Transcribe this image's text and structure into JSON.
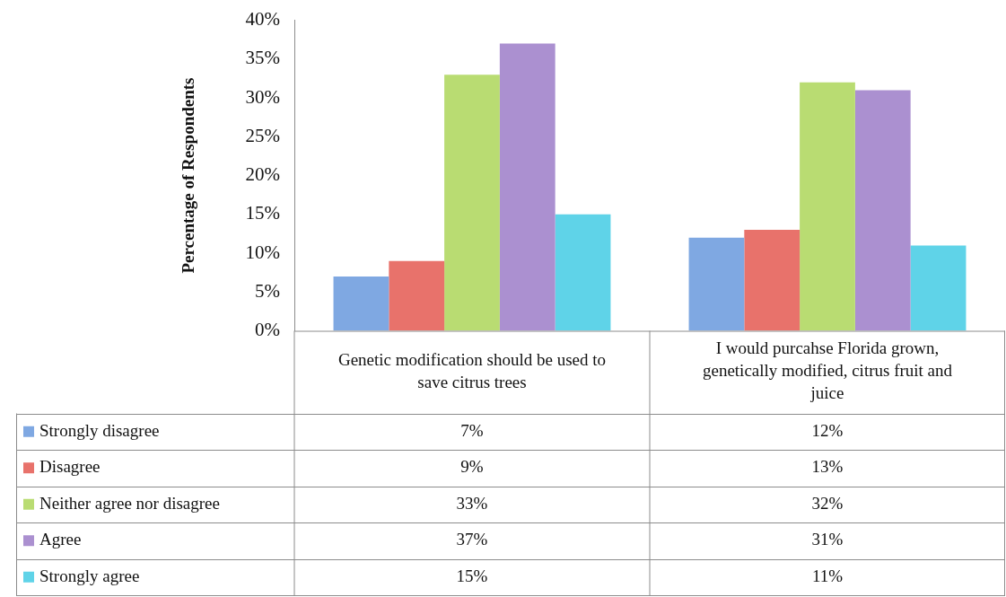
{
  "chart_data": {
    "type": "bar",
    "ylabel": "Percentage of Respondents",
    "categories": [
      "Genetic modification should be used to save citrus trees",
      "I would purcahse Florida grown, genetically modified, citrus fruit and juice"
    ],
    "series": [
      {
        "name": "Strongly disagree",
        "color": "#7fa8e2",
        "values": [
          7,
          12
        ],
        "value_labels": [
          "7%",
          "12%"
        ]
      },
      {
        "name": "Disagree",
        "color": "#e8726b",
        "values": [
          9,
          13
        ],
        "value_labels": [
          "9%",
          "13%"
        ]
      },
      {
        "name": "Neither agree nor disagree",
        "color": "#b9dc72",
        "values": [
          33,
          32
        ],
        "value_labels": [
          "33%",
          "32%"
        ]
      },
      {
        "name": "Agree",
        "color": "#ab90d0",
        "values": [
          37,
          31
        ],
        "value_labels": [
          "37%",
          "31%"
        ]
      },
      {
        "name": "Strongly agree",
        "color": "#5fd3e8",
        "values": [
          15,
          11
        ],
        "value_labels": [
          "15%",
          "11%"
        ]
      }
    ],
    "ylim": [
      0,
      40
    ],
    "yticks": [
      {
        "value": 0,
        "label": "0%"
      },
      {
        "value": 5,
        "label": "5%"
      },
      {
        "value": 10,
        "label": "10%"
      },
      {
        "value": 15,
        "label": "15%"
      },
      {
        "value": 20,
        "label": "20%"
      },
      {
        "value": 25,
        "label": "25%"
      },
      {
        "value": 30,
        "label": "30%"
      },
      {
        "value": 35,
        "label": "35%"
      },
      {
        "value": 40,
        "label": "40%"
      }
    ],
    "grid": false,
    "legend": "bottom"
  }
}
